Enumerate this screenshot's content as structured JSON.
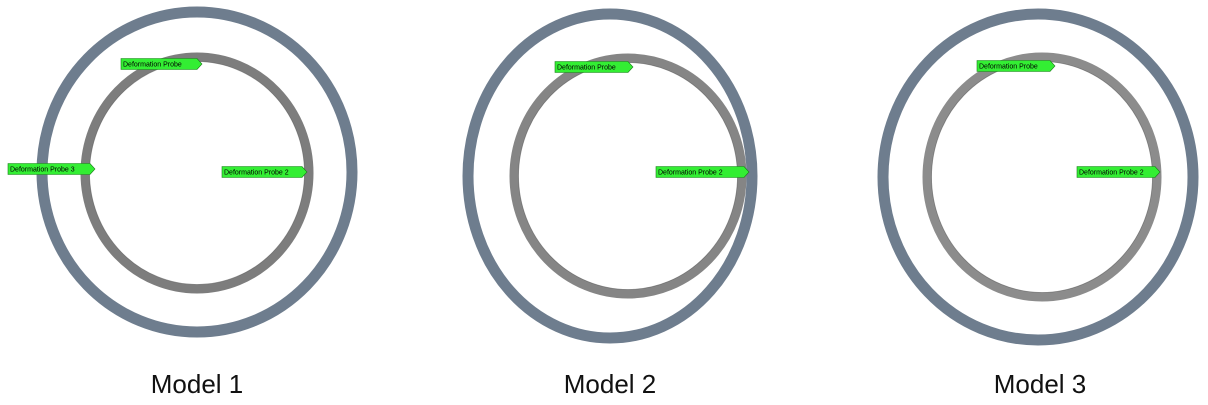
{
  "panels": [
    {
      "label": "Model 1",
      "probes": [
        "Deformation Probe",
        "Deformation Probe 3",
        "Deformation Probe 2"
      ]
    },
    {
      "label": "Model 2",
      "probes": [
        "Deformation Probe",
        "Deformation Probe 2"
      ]
    },
    {
      "label": "Model 3",
      "probes": [
        "Deformation Probe",
        "Deformation Probe 2"
      ]
    }
  ]
}
